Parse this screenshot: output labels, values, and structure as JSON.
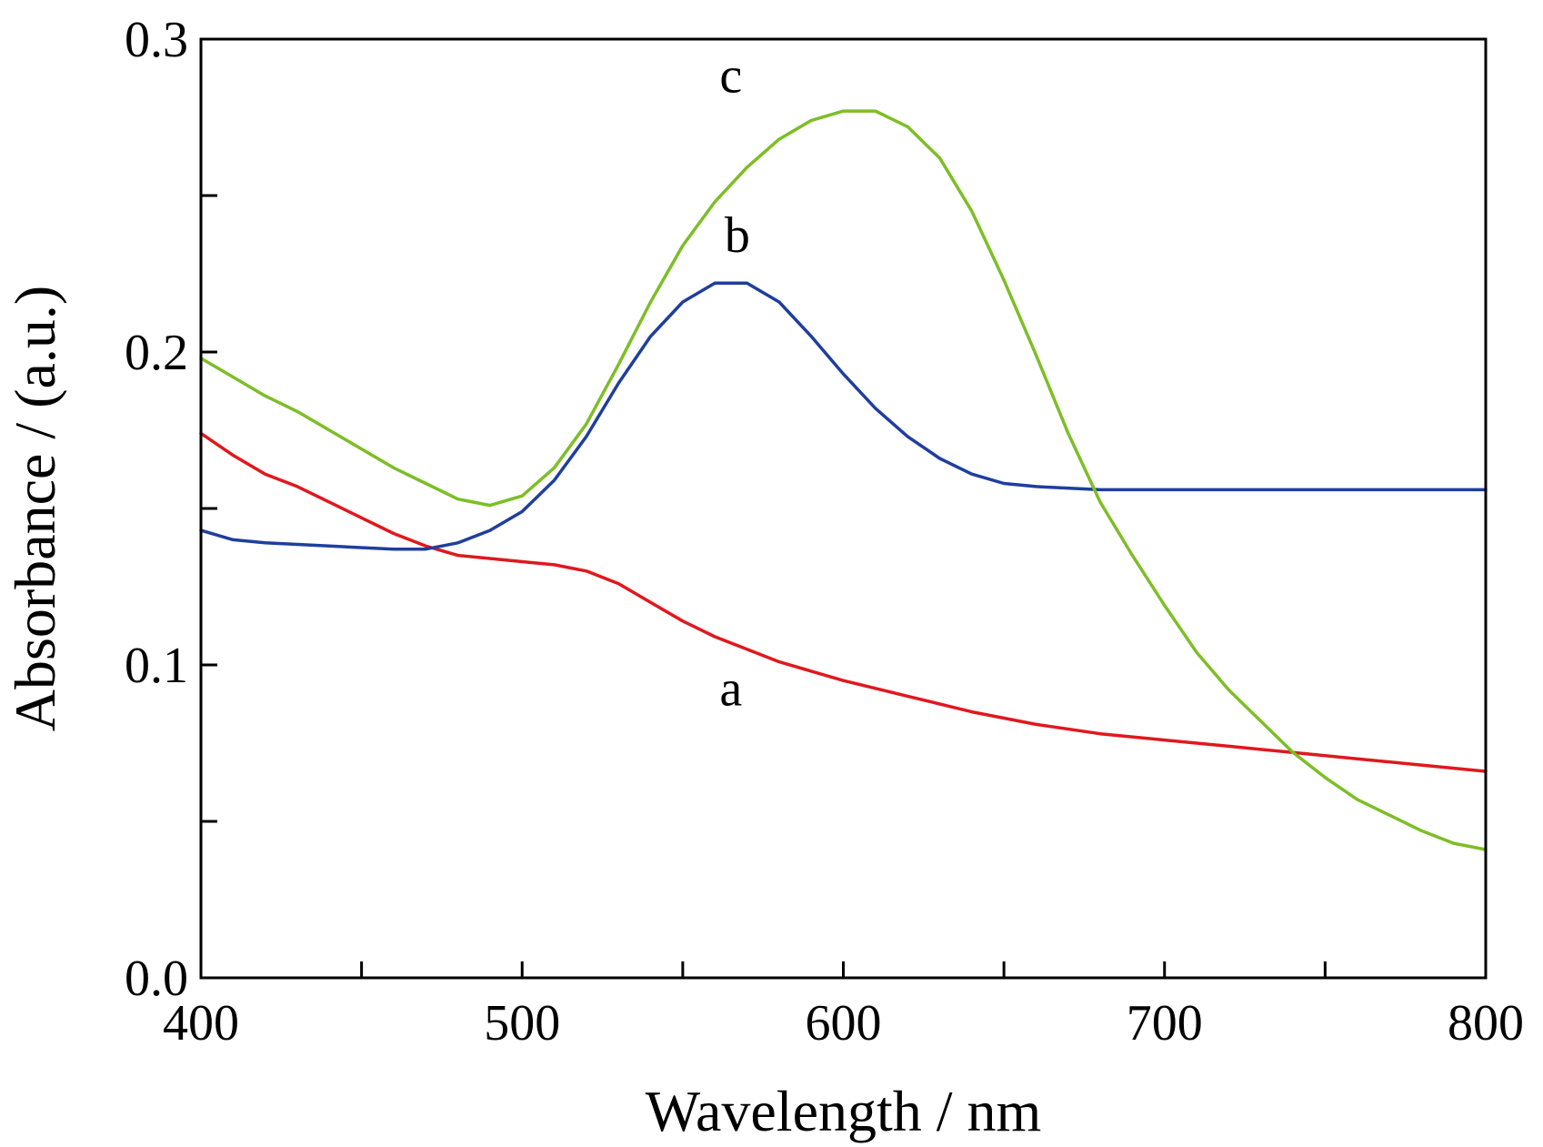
{
  "chart_data": {
    "type": "line",
    "xlabel": "Wavelength / nm",
    "ylabel": "Absorbance / (a.u.)",
    "xlim": [
      400,
      800
    ],
    "ylim": [
      0.0,
      0.3
    ],
    "x_ticks": [
      400,
      500,
      600,
      700,
      800
    ],
    "x_tick_labels": [
      "400",
      "500",
      "600",
      "700",
      "800"
    ],
    "x_minor_ticks": [
      450,
      550,
      650,
      750
    ],
    "y_ticks": [
      0.0,
      0.1,
      0.2,
      0.3
    ],
    "y_tick_labels": [
      "0.0",
      "0.1",
      "0.2",
      "0.3"
    ],
    "y_minor_ticks": [
      0.05,
      0.15,
      0.25
    ],
    "grid": false,
    "series": [
      {
        "name": "a",
        "color": "#e0181e",
        "label_at": [
          565,
          0.087
        ],
        "points": [
          [
            400,
            0.174
          ],
          [
            410,
            0.167
          ],
          [
            420,
            0.161
          ],
          [
            430,
            0.157
          ],
          [
            440,
            0.152
          ],
          [
            450,
            0.147
          ],
          [
            460,
            0.142
          ],
          [
            470,
            0.138
          ],
          [
            480,
            0.135
          ],
          [
            490,
            0.134
          ],
          [
            500,
            0.133
          ],
          [
            510,
            0.132
          ],
          [
            520,
            0.13
          ],
          [
            530,
            0.126
          ],
          [
            540,
            0.12
          ],
          [
            550,
            0.114
          ],
          [
            560,
            0.109
          ],
          [
            570,
            0.105
          ],
          [
            580,
            0.101
          ],
          [
            590,
            0.098
          ],
          [
            600,
            0.095
          ],
          [
            620,
            0.09
          ],
          [
            640,
            0.085
          ],
          [
            660,
            0.081
          ],
          [
            680,
            0.078
          ],
          [
            700,
            0.076
          ],
          [
            720,
            0.074
          ],
          [
            740,
            0.072
          ],
          [
            760,
            0.07
          ],
          [
            780,
            0.068
          ],
          [
            800,
            0.066
          ]
        ]
      },
      {
        "name": "b",
        "color": "#1f3e9e",
        "label_at": [
          567,
          0.232
        ],
        "points": [
          [
            400,
            0.143
          ],
          [
            410,
            0.14
          ],
          [
            420,
            0.139
          ],
          [
            440,
            0.138
          ],
          [
            460,
            0.137
          ],
          [
            470,
            0.137
          ],
          [
            480,
            0.139
          ],
          [
            490,
            0.143
          ],
          [
            500,
            0.149
          ],
          [
            510,
            0.159
          ],
          [
            520,
            0.173
          ],
          [
            530,
            0.19
          ],
          [
            540,
            0.205
          ],
          [
            550,
            0.216
          ],
          [
            560,
            0.222
          ],
          [
            570,
            0.222
          ],
          [
            580,
            0.216
          ],
          [
            590,
            0.205
          ],
          [
            600,
            0.193
          ],
          [
            610,
            0.182
          ],
          [
            620,
            0.173
          ],
          [
            630,
            0.166
          ],
          [
            640,
            0.161
          ],
          [
            650,
            0.158
          ],
          [
            660,
            0.157
          ],
          [
            680,
            0.156
          ],
          [
            700,
            0.156
          ],
          [
            720,
            0.156
          ],
          [
            740,
            0.156
          ],
          [
            760,
            0.156
          ],
          [
            780,
            0.156
          ],
          [
            800,
            0.156
          ]
        ]
      },
      {
        "name": "c",
        "color": "#7dbe26",
        "label_at": [
          565,
          0.283
        ],
        "points": [
          [
            400,
            0.198
          ],
          [
            410,
            0.192
          ],
          [
            420,
            0.186
          ],
          [
            430,
            0.181
          ],
          [
            440,
            0.175
          ],
          [
            450,
            0.169
          ],
          [
            460,
            0.163
          ],
          [
            470,
            0.158
          ],
          [
            480,
            0.153
          ],
          [
            490,
            0.151
          ],
          [
            500,
            0.154
          ],
          [
            510,
            0.163
          ],
          [
            520,
            0.177
          ],
          [
            530,
            0.196
          ],
          [
            540,
            0.216
          ],
          [
            550,
            0.234
          ],
          [
            560,
            0.248
          ],
          [
            570,
            0.259
          ],
          [
            580,
            0.268
          ],
          [
            590,
            0.274
          ],
          [
            600,
            0.277
          ],
          [
            610,
            0.277
          ],
          [
            620,
            0.272
          ],
          [
            630,
            0.262
          ],
          [
            640,
            0.245
          ],
          [
            650,
            0.223
          ],
          [
            660,
            0.199
          ],
          [
            670,
            0.174
          ],
          [
            680,
            0.152
          ],
          [
            690,
            0.135
          ],
          [
            700,
            0.119
          ],
          [
            710,
            0.104
          ],
          [
            720,
            0.092
          ],
          [
            730,
            0.082
          ],
          [
            740,
            0.072
          ],
          [
            750,
            0.064
          ],
          [
            760,
            0.057
          ],
          [
            770,
            0.052
          ],
          [
            780,
            0.047
          ],
          [
            790,
            0.043
          ],
          [
            800,
            0.041
          ]
        ]
      }
    ]
  }
}
